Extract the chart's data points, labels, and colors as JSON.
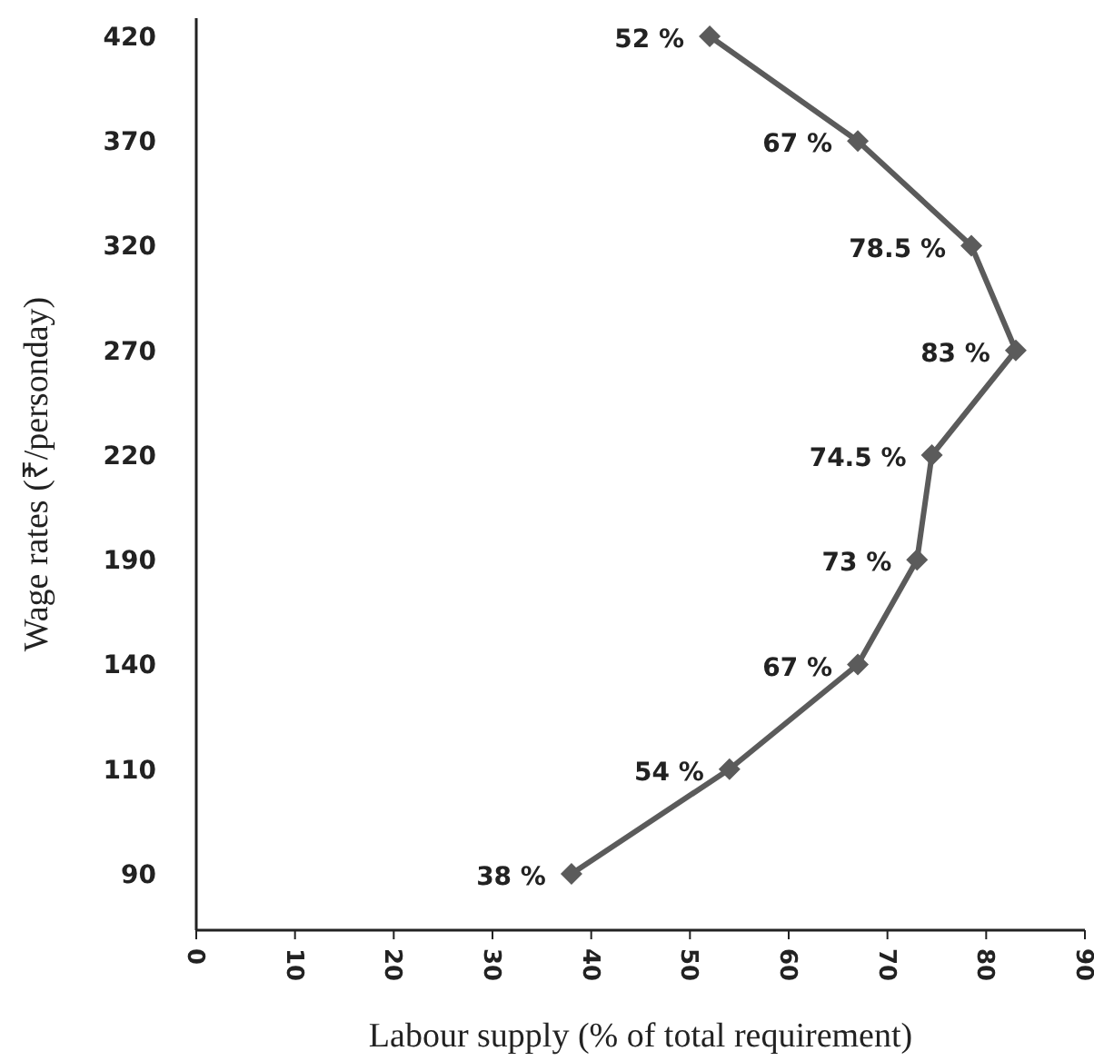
{
  "chart_data": {
    "type": "line",
    "orientation": "horizontal",
    "xlabel": "Labour supply (% of total requirement)",
    "ylabel": "Wage rates (₹/personday)",
    "categories": [
      "420",
      "370",
      "320",
      "270",
      "220",
      "190",
      "140",
      "110",
      "90"
    ],
    "series": [
      {
        "color": "#5b5b5b",
        "values": [
          52,
          67,
          78.5,
          83,
          74.5,
          73,
          67,
          54,
          38
        ],
        "value_labels": [
          "52 %",
          "67 %",
          "78.5 %",
          "83 %",
          "74.5 %",
          "73 %",
          "67 %",
          "54 %",
          "38 %"
        ]
      }
    ],
    "xlim": [
      0,
      90
    ],
    "xticks": [
      0,
      10,
      20,
      30,
      40,
      50,
      60,
      70,
      80,
      90
    ],
    "marker": "diamond"
  }
}
